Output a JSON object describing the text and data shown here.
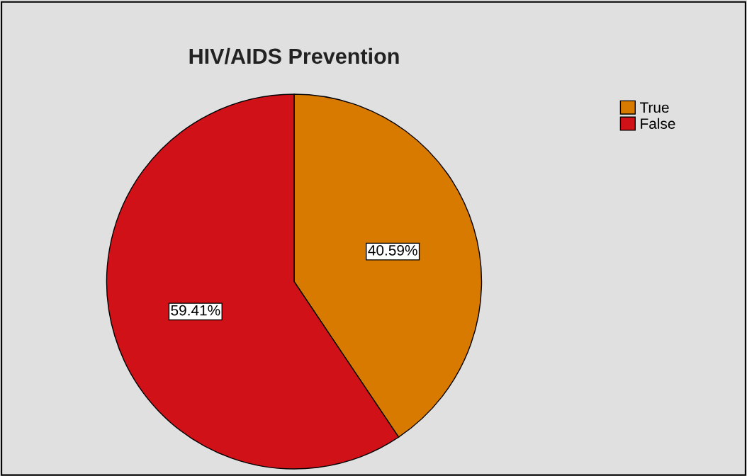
{
  "chart_data": {
    "type": "pie",
    "title": "HIV/AIDS Prevention",
    "categories": [
      "True",
      "False"
    ],
    "values": [
      40.59,
      59.41
    ],
    "value_labels": [
      "40.59%",
      "59.41%"
    ],
    "colors": [
      "#d97a00",
      "#d01218"
    ],
    "legend": "top right"
  }
}
